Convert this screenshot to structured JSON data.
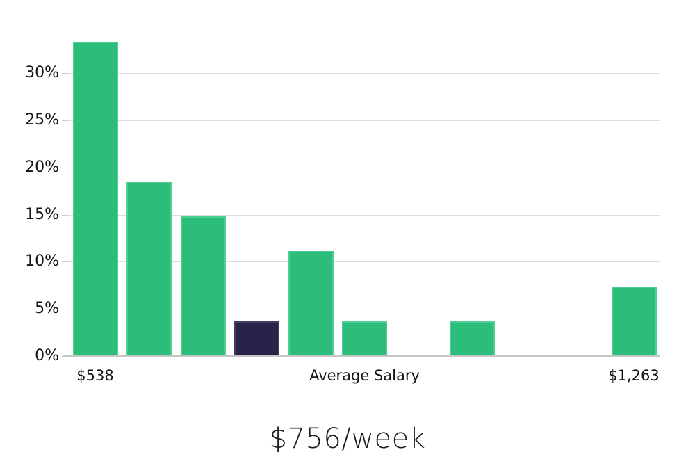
{
  "chart_data": {
    "type": "bar",
    "title": "$756/week",
    "xlabel": "",
    "ylabel": "",
    "values": [
      33.3,
      18.5,
      14.8,
      3.7,
      11.1,
      3.7,
      0.15,
      3.7,
      0.15,
      0.15,
      7.4
    ],
    "highlighted_bar_index": 3,
    "x_tick_labels": [
      {
        "label": "$538",
        "bar_index": 0
      },
      {
        "label": "Average Salary",
        "bar_index": 5
      },
      {
        "label": "$1,263",
        "bar_index": 10
      }
    ],
    "y_ticks": [
      {
        "label": "0%",
        "value": 0
      },
      {
        "label": "5%",
        "value": 5
      },
      {
        "label": "10%",
        "value": 10
      },
      {
        "label": "15%",
        "value": 15
      },
      {
        "label": "20%",
        "value": 20
      },
      {
        "label": "25%",
        "value": 25
      },
      {
        "label": "30%",
        "value": 30
      }
    ],
    "ylim": [
      0,
      34.8
    ],
    "grid": true,
    "legend": false,
    "colors": {
      "bar_fill": "#2cbd7b",
      "bar_border": "#4ecf92",
      "highlight_fill": "#292349",
      "highlight_border": "#413c63",
      "grid_line": "#dcdcdc",
      "axis_line": "#c6c6c6",
      "text": "#141414"
    }
  }
}
